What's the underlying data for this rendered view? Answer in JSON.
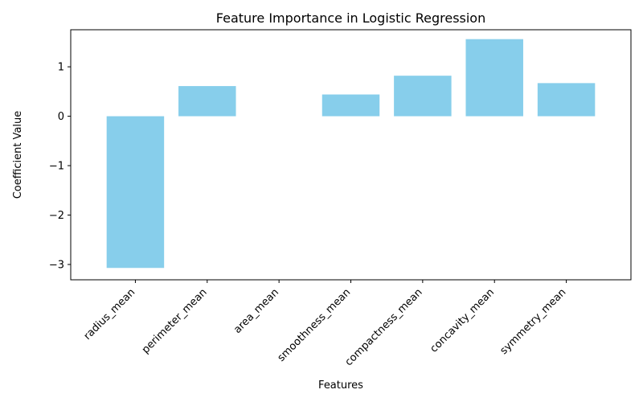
{
  "chart_data": {
    "type": "bar",
    "title": "Feature Importance in Logistic Regression",
    "xlabel": "Features",
    "ylabel": "Coefficient Value",
    "categories": [
      "radius_mean",
      "perimeter_mean",
      "area_mean",
      "smoothness_mean",
      "compactness_mean",
      "concavity_mean",
      "symmetry_mean"
    ],
    "values": [
      -3.07,
      0.61,
      0.0,
      0.44,
      0.82,
      1.56,
      0.67
    ],
    "ylim": [
      -3.31,
      1.75
    ],
    "yticks": [
      -3,
      -2,
      -1,
      0,
      1
    ],
    "ytick_labels": [
      "−3",
      "−2",
      "−1",
      "0",
      "1"
    ],
    "grid": false,
    "bar_color": "#87CEEB"
  }
}
